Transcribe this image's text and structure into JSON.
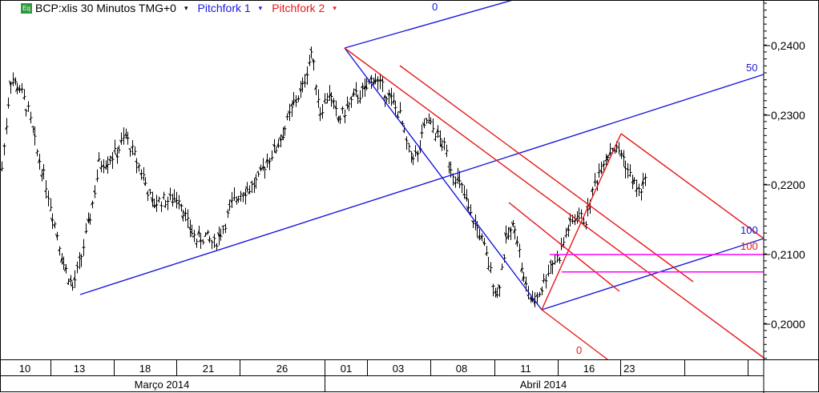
{
  "header": {
    "symbol_badge": "Eq",
    "instrument": "BCP:xlis 30 Minutos TMG+0",
    "dropdown_glyph": "▾",
    "study1": "Pitchfork 1",
    "study2": "Pitchfork 2"
  },
  "colors": {
    "price": "#000000",
    "pitchfork1": "#1a1adc",
    "pitchfork2": "#e81818",
    "hlines": "#ff00ff"
  },
  "chart_data": {
    "type": "bar",
    "title": "",
    "y_ticks": [
      "0,2400",
      "0,2300",
      "0,2200",
      "0,2100",
      "0,2000"
    ],
    "y_tick_values": [
      0.24,
      0.23,
      0.22,
      0.21,
      0.2
    ],
    "ylim": [
      0.1948,
      0.2466
    ],
    "x_day_labels": [
      "10",
      "13",
      "18",
      "21",
      "26",
      "01",
      "03",
      "08",
      "11",
      "16",
      "23"
    ],
    "x_month_labels": [
      "Março 2014",
      "Abril 2014"
    ],
    "close_series_approx": [
      0.2224,
      0.2351,
      0.2339,
      0.2305,
      0.2247,
      0.2201,
      0.2144,
      0.2086,
      0.2052,
      0.2098,
      0.2155,
      0.223,
      0.2236,
      0.2247,
      0.227,
      0.2241,
      0.2213,
      0.2172,
      0.2178,
      0.2178,
      0.2184,
      0.2144,
      0.2121,
      0.2126,
      0.2115,
      0.2138,
      0.2172,
      0.219,
      0.2195,
      0.2207,
      0.2236,
      0.2253,
      0.2282,
      0.2316,
      0.2339,
      0.2391,
      0.2305,
      0.2333,
      0.2293,
      0.231,
      0.2328,
      0.2333,
      0.2356,
      0.2339,
      0.2322,
      0.2299,
      0.2247,
      0.2241,
      0.2293,
      0.2276,
      0.2253,
      0.2218,
      0.2195,
      0.2155,
      0.2132,
      0.2086,
      0.204,
      0.2121,
      0.2144,
      0.2063,
      0.2029,
      0.2052,
      0.2086,
      0.2098,
      0.2138,
      0.2155,
      0.2149,
      0.2201,
      0.2236,
      0.2253,
      0.2247,
      0.2213,
      0.219,
      0.2207
    ],
    "pitchfork_labels": {
      "p1_zero": "0",
      "p1_fifty": "50",
      "p1_hundred": "100",
      "p2_zero": "0",
      "p2_hundred": "100"
    },
    "horizontal_levels": [
      0.21,
      0.2075
    ],
    "grid": false
  }
}
